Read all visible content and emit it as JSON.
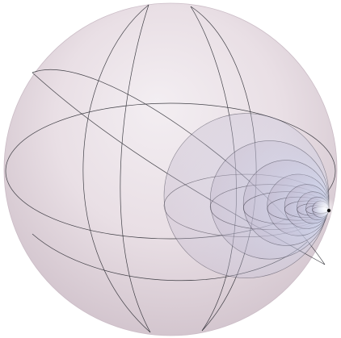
{
  "figure": {
    "kind": "nested-spheres-wireframe",
    "outer_sphere_color": "#e9dfe5",
    "inner_sphere_color": "#c6cbe6",
    "wire_color": "#2f2f35",
    "tangent_point_color": "#111111",
    "inner_sphere_count": 8
  }
}
